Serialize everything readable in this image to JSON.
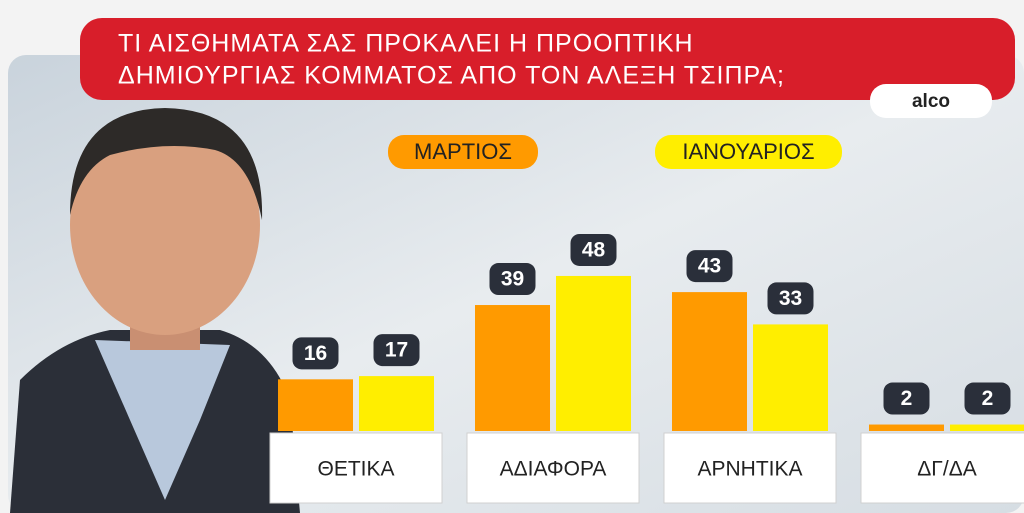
{
  "chart_data": {
    "type": "bar",
    "title": [
      "ΤΙ ΑΙΣΘΗΜΑΤΑ ΣΑΣ ΠΡΟΚΑΛΕΙ Η ΠΡΟΟΠΤΙΚΗ",
      "ΔΗΜΙΟΥΡΓΙΑΣ ΚΟΜΜΑΤΟΣ ΑΠΟ ΤΟΝ ΑΛΕΞΗ ΤΣΙΠΡΑ;"
    ],
    "source": "alco",
    "categories": [
      "ΘΕΤΙΚΑ",
      "ΑΔΙΑΦΟΡΑ",
      "ΑΡΝΗΤΙΚΑ",
      "ΔΓ/ΔΑ"
    ],
    "series": [
      {
        "name": "ΜΑΡΤΙΟΣ",
        "color": "#ff9a00",
        "values": [
          16,
          39,
          43,
          2
        ]
      },
      {
        "name": "ΙΑΝΟΥΑΡΙΟΣ",
        "color": "#ffee00",
        "values": [
          17,
          48,
          33,
          2
        ]
      }
    ]
  }
}
